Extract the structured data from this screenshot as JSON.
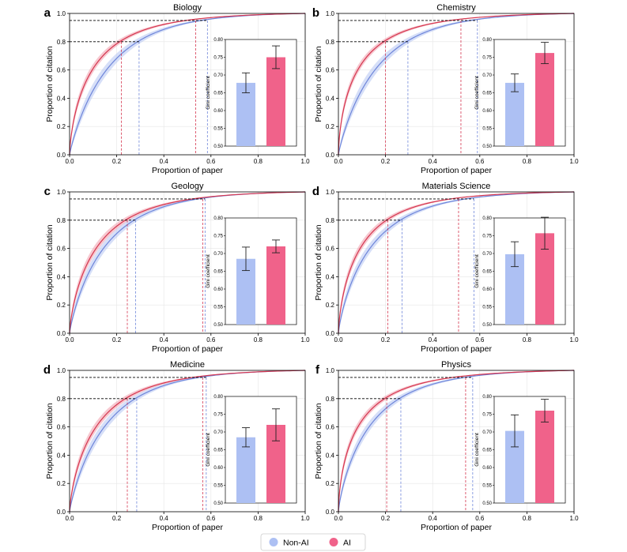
{
  "colors": {
    "nonai": "#6f86da",
    "nonai_band": "#b4c4f2",
    "nonai_bar": "#adc0f3",
    "ai": "#d5364f",
    "ai_band": "#f09aa9",
    "ai_bar": "#f0628a",
    "guide": "#000000"
  },
  "legend": {
    "items": [
      {
        "label": "Non-AI",
        "color": "#adc0f3"
      },
      {
        "label": "AI",
        "color": "#f0628a"
      }
    ]
  },
  "chart_data": [
    {
      "panel": "a",
      "type": "line",
      "title": "Biology",
      "xlabel": "Proportion of paper",
      "ylabel": "Proportion of citation",
      "xlim": [
        0,
        1
      ],
      "ylim": [
        0,
        1
      ],
      "xticks": [
        "0.0",
        "0.2",
        "0.4",
        "0.6",
        "0.8",
        "1.0"
      ],
      "yticks": [
        "0.0",
        "0.2",
        "0.4",
        "0.6",
        "0.8",
        "1.0"
      ],
      "levels": [
        0.8,
        0.95
      ],
      "series": [
        {
          "name": "Non-AI",
          "x_at_levels": [
            0.295,
            0.585
          ]
        },
        {
          "name": "AI",
          "x_at_levels": [
            0.22,
            0.535
          ]
        }
      ],
      "inset": {
        "type": "bar",
        "ylabel": "Gini coefficient",
        "ylim": [
          0.5,
          0.8
        ],
        "yticks": [
          "0.50",
          "0.55",
          "0.60",
          "0.65",
          "0.70",
          "0.75",
          "0.80"
        ],
        "categories": [
          "Non-AI",
          "AI"
        ],
        "values": [
          0.678,
          0.75
        ],
        "errors": [
          0.028,
          0.032
        ]
      }
    },
    {
      "panel": "b",
      "type": "line",
      "title": "Chemistry",
      "xlabel": "Proportion of paper",
      "ylabel": "Proportion of citation",
      "xlim": [
        0,
        1
      ],
      "ylim": [
        0,
        1
      ],
      "xticks": [
        "0.0",
        "0.2",
        "0.4",
        "0.6",
        "0.8",
        "1.0"
      ],
      "yticks": [
        "0.0",
        "0.2",
        "0.4",
        "0.6",
        "0.8",
        "1.0"
      ],
      "levels": [
        0.8,
        0.95
      ],
      "series": [
        {
          "name": "Non-AI",
          "x_at_levels": [
            0.295,
            0.59
          ]
        },
        {
          "name": "AI",
          "x_at_levels": [
            0.2,
            0.52
          ]
        }
      ],
      "inset": {
        "type": "bar",
        "ylabel": "Gini coefficient",
        "ylim": [
          0.5,
          0.8
        ],
        "yticks": [
          "0.50",
          "0.55",
          "0.60",
          "0.65",
          "0.70",
          "0.75",
          "0.80"
        ],
        "categories": [
          "Non-AI",
          "AI"
        ],
        "values": [
          0.678,
          0.762
        ],
        "errors": [
          0.025,
          0.03
        ]
      }
    },
    {
      "panel": "c",
      "type": "line",
      "title": "Geology",
      "xlabel": "Proportion of paper",
      "ylabel": "Proportion of citation",
      "xlim": [
        0,
        1
      ],
      "ylim": [
        0,
        1
      ],
      "xticks": [
        "0.0",
        "0.2",
        "0.4",
        "0.6",
        "0.8",
        "1.0"
      ],
      "yticks": [
        "0.0",
        "0.2",
        "0.4",
        "0.6",
        "0.8",
        "1.0"
      ],
      "levels": [
        0.8,
        0.95
      ],
      "series": [
        {
          "name": "Non-AI",
          "x_at_levels": [
            0.28,
            0.575
          ]
        },
        {
          "name": "AI",
          "x_at_levels": [
            0.245,
            0.565
          ]
        }
      ],
      "inset": {
        "type": "bar",
        "ylabel": "Gini coefficient",
        "ylim": [
          0.5,
          0.8
        ],
        "yticks": [
          "0.50",
          "0.55",
          "0.60",
          "0.65",
          "0.70",
          "0.75",
          "0.80"
        ],
        "categories": [
          "Non-AI",
          "AI"
        ],
        "values": [
          0.685,
          0.72
        ],
        "errors": [
          0.033,
          0.018
        ]
      }
    },
    {
      "panel": "d",
      "type": "line",
      "title": "Materials Science",
      "xlabel": "Proportion of paper",
      "ylabel": "Proportion of citation",
      "xlim": [
        0,
        1
      ],
      "ylim": [
        0,
        1
      ],
      "xticks": [
        "0.0",
        "0.2",
        "0.4",
        "0.6",
        "0.8",
        "1.0"
      ],
      "yticks": [
        "0.0",
        "0.2",
        "0.4",
        "0.6",
        "0.8",
        "1.0"
      ],
      "levels": [
        0.8,
        0.95
      ],
      "series": [
        {
          "name": "Non-AI",
          "x_at_levels": [
            0.27,
            0.575
          ]
        },
        {
          "name": "AI",
          "x_at_levels": [
            0.21,
            0.51
          ]
        }
      ],
      "inset": {
        "type": "bar",
        "ylabel": "Gini coefficient",
        "ylim": [
          0.5,
          0.8
        ],
        "yticks": [
          "0.50",
          "0.55",
          "0.60",
          "0.65",
          "0.70",
          "0.75",
          "0.80"
        ],
        "categories": [
          "Non-AI",
          "AI"
        ],
        "values": [
          0.698,
          0.757
        ],
        "errors": [
          0.035,
          0.045
        ]
      }
    },
    {
      "panel": "d",
      "type": "line",
      "title": "Medicine",
      "xlabel": "Proportion of paper",
      "ylabel": "Proportion of citation",
      "xlim": [
        0,
        1
      ],
      "ylim": [
        0,
        1
      ],
      "xticks": [
        "0.0",
        "0.2",
        "0.4",
        "0.6",
        "0.8",
        "1.0"
      ],
      "yticks": [
        "0.0",
        "0.2",
        "0.4",
        "0.6",
        "0.8",
        "1.0"
      ],
      "levels": [
        0.8,
        0.95
      ],
      "series": [
        {
          "name": "Non-AI",
          "x_at_levels": [
            0.285,
            0.58
          ]
        },
        {
          "name": "AI",
          "x_at_levels": [
            0.245,
            0.565
          ]
        }
      ],
      "inset": {
        "type": "bar",
        "ylabel": "Gini coefficient",
        "ylim": [
          0.5,
          0.8
        ],
        "yticks": [
          "0.50",
          "0.55",
          "0.60",
          "0.65",
          "0.70",
          "0.75",
          "0.80"
        ],
        "categories": [
          "Non-AI",
          "AI"
        ],
        "values": [
          0.685,
          0.72
        ],
        "errors": [
          0.027,
          0.045
        ]
      }
    },
    {
      "panel": "f",
      "type": "line",
      "title": "Physics",
      "xlabel": "Proportion of paper",
      "ylabel": "Proportion of citation",
      "xlim": [
        0,
        1
      ],
      "ylim": [
        0,
        1
      ],
      "xticks": [
        "0.0",
        "0.2",
        "0.4",
        "0.6",
        "0.8",
        "1.0"
      ],
      "yticks": [
        "0.0",
        "0.2",
        "0.4",
        "0.6",
        "0.8",
        "1.0"
      ],
      "levels": [
        0.8,
        0.95
      ],
      "series": [
        {
          "name": "Non-AI",
          "x_at_levels": [
            0.265,
            0.57
          ]
        },
        {
          "name": "AI",
          "x_at_levels": [
            0.205,
            0.54
          ]
        }
      ],
      "inset": {
        "type": "bar",
        "ylabel": "Gini coefficient",
        "ylim": [
          0.5,
          0.8
        ],
        "yticks": [
          "0.50",
          "0.55",
          "0.60",
          "0.65",
          "0.70",
          "0.75",
          "0.80"
        ],
        "categories": [
          "Non-AI",
          "AI"
        ],
        "values": [
          0.703,
          0.76
        ],
        "errors": [
          0.045,
          0.032
        ]
      }
    }
  ]
}
